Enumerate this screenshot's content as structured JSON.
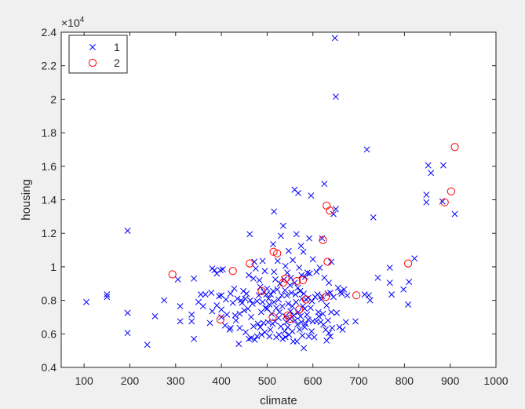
{
  "chart_data": {
    "type": "scatter",
    "title": "",
    "xlabel": "climate",
    "ylabel": "housing",
    "y_exponent_label": "×10",
    "y_exponent_power": "4",
    "xlim": [
      50,
      1000
    ],
    "ylim": [
      0.4,
      2.4
    ],
    "y_scale_factor": 10000,
    "grid": false,
    "legend_position": "top-left",
    "x_ticks": [
      {
        "value": 100,
        "label": "100"
      },
      {
        "value": 200,
        "label": "200"
      },
      {
        "value": 300,
        "label": "300"
      },
      {
        "value": 400,
        "label": "400"
      },
      {
        "value": 500,
        "label": "500"
      },
      {
        "value": 600,
        "label": "600"
      },
      {
        "value": 700,
        "label": "700"
      },
      {
        "value": 800,
        "label": "800"
      },
      {
        "value": 900,
        "label": "900"
      },
      {
        "value": 1000,
        "label": "1000"
      }
    ],
    "y_ticks": [
      {
        "value": 0.4,
        "label": "0.4"
      },
      {
        "value": 0.6,
        "label": "0.6"
      },
      {
        "value": 0.8,
        "label": "0.8"
      },
      {
        "value": 1.0,
        "label": "1"
      },
      {
        "value": 1.2,
        "label": "1.2"
      },
      {
        "value": 1.4,
        "label": "1.4"
      },
      {
        "value": 1.6,
        "label": "1.6"
      },
      {
        "value": 1.8,
        "label": "1.8"
      },
      {
        "value": 2.0,
        "label": "2"
      },
      {
        "value": 2.2,
        "label": "2.2"
      },
      {
        "value": 2.4,
        "label": "2.4"
      }
    ],
    "series": [
      {
        "name": "1",
        "marker": "x",
        "color": "#0000ff",
        "points": [
          [
            105,
            7900
          ],
          [
            150,
            8200
          ],
          [
            150,
            8350
          ],
          [
            195,
            12150
          ],
          [
            195,
            7250
          ],
          [
            195,
            6050
          ],
          [
            238,
            5350
          ],
          [
            255,
            7050
          ],
          [
            275,
            8000
          ],
          [
            305,
            9250
          ],
          [
            310,
            7650
          ],
          [
            310,
            6750
          ],
          [
            335,
            7150
          ],
          [
            335,
            6750
          ],
          [
            340,
            5700
          ],
          [
            340,
            9300
          ],
          [
            350,
            7900
          ],
          [
            355,
            8350
          ],
          [
            360,
            7650
          ],
          [
            365,
            8350
          ],
          [
            375,
            6650
          ],
          [
            378,
            8450
          ],
          [
            380,
            7350
          ],
          [
            380,
            9900
          ],
          [
            385,
            9800
          ],
          [
            390,
            7700
          ],
          [
            390,
            9600
          ],
          [
            395,
            8250
          ],
          [
            398,
            9800
          ],
          [
            400,
            8300
          ],
          [
            400,
            7450
          ],
          [
            400,
            7000
          ],
          [
            403,
            9850
          ],
          [
            408,
            6500
          ],
          [
            410,
            8050
          ],
          [
            412,
            7150
          ],
          [
            418,
            6250
          ],
          [
            420,
            8400
          ],
          [
            420,
            6350
          ],
          [
            425,
            7850
          ],
          [
            428,
            8700
          ],
          [
            430,
            7100
          ],
          [
            432,
            6800
          ],
          [
            435,
            8100
          ],
          [
            438,
            5400
          ],
          [
            440,
            7200
          ],
          [
            440,
            6350
          ],
          [
            443,
            8000
          ],
          [
            445,
            7850
          ],
          [
            448,
            8550
          ],
          [
            450,
            7400
          ],
          [
            452,
            8100
          ],
          [
            453,
            6100
          ],
          [
            455,
            8400
          ],
          [
            458,
            7500
          ],
          [
            460,
            5700
          ],
          [
            460,
            9500
          ],
          [
            462,
            11950
          ],
          [
            463,
            8000
          ],
          [
            465,
            7000
          ],
          [
            465,
            5750
          ],
          [
            468,
            7800
          ],
          [
            470,
            6450
          ],
          [
            470,
            9300
          ],
          [
            472,
            10300
          ],
          [
            473,
            5650
          ],
          [
            475,
            9900
          ],
          [
            478,
            5850
          ],
          [
            478,
            7950
          ],
          [
            480,
            6600
          ],
          [
            482,
            8300
          ],
          [
            483,
            9200
          ],
          [
            485,
            8800
          ],
          [
            485,
            6400
          ],
          [
            487,
            7300
          ],
          [
            488,
            5950
          ],
          [
            490,
            7900
          ],
          [
            490,
            10350
          ],
          [
            492,
            6650
          ],
          [
            493,
            8500
          ],
          [
            495,
            9750
          ],
          [
            495,
            6100
          ],
          [
            496,
            7550
          ],
          [
            498,
            8350
          ],
          [
            500,
            8700
          ],
          [
            500,
            7500
          ],
          [
            502,
            6700
          ],
          [
            503,
            8100
          ],
          [
            505,
            7750
          ],
          [
            505,
            5850
          ],
          [
            507,
            6250
          ],
          [
            508,
            8350
          ],
          [
            510,
            7200
          ],
          [
            512,
            6600
          ],
          [
            513,
            8550
          ],
          [
            513,
            11350
          ],
          [
            515,
            9700
          ],
          [
            515,
            13300
          ],
          [
            515,
            7900
          ],
          [
            517,
            6750
          ],
          [
            518,
            9250
          ],
          [
            520,
            5800
          ],
          [
            520,
            7550
          ],
          [
            522,
            8650
          ],
          [
            523,
            10350
          ],
          [
            525,
            6950
          ],
          [
            525,
            8050
          ],
          [
            526,
            5950
          ],
          [
            527,
            7300
          ],
          [
            528,
            9000
          ],
          [
            530,
            6450
          ],
          [
            530,
            11850
          ],
          [
            532,
            8300
          ],
          [
            533,
            7650
          ],
          [
            534,
            5700
          ],
          [
            535,
            12450
          ],
          [
            537,
            9250
          ],
          [
            538,
            6150
          ],
          [
            539,
            8600
          ],
          [
            540,
            5800
          ],
          [
            540,
            10050
          ],
          [
            540,
            7050
          ],
          [
            542,
            6700
          ],
          [
            543,
            8300
          ],
          [
            544,
            9650
          ],
          [
            545,
            6400
          ],
          [
            546,
            7800
          ],
          [
            547,
            10950
          ],
          [
            548,
            5950
          ],
          [
            550,
            8900
          ],
          [
            550,
            6900
          ],
          [
            551,
            7350
          ],
          [
            552,
            9350
          ],
          [
            553,
            8450
          ],
          [
            555,
            6150
          ],
          [
            555,
            7650
          ],
          [
            556,
            10400
          ],
          [
            557,
            5550
          ],
          [
            558,
            7100
          ],
          [
            560,
            9050
          ],
          [
            560,
            14600
          ],
          [
            561,
            6800
          ],
          [
            562,
            8350
          ],
          [
            563,
            7900
          ],
          [
            564,
            11950
          ],
          [
            565,
            5550
          ],
          [
            566,
            6550
          ],
          [
            567,
            8750
          ],
          [
            568,
            14400
          ],
          [
            568,
            7300
          ],
          [
            570,
            9950
          ],
          [
            571,
            6250
          ],
          [
            572,
            8550
          ],
          [
            573,
            7050
          ],
          [
            574,
            11250
          ],
          [
            575,
            6700
          ],
          [
            575,
            9500
          ],
          [
            576,
            8100
          ],
          [
            577,
            5900
          ],
          [
            578,
            7650
          ],
          [
            579,
            10900
          ],
          [
            580,
            5150
          ],
          [
            580,
            8400
          ],
          [
            582,
            6400
          ],
          [
            582,
            7500
          ],
          [
            583,
            9400
          ],
          [
            584,
            6600
          ],
          [
            585,
            8050
          ],
          [
            587,
            7150
          ],
          [
            588,
            9650
          ],
          [
            590,
            6850
          ],
          [
            590,
            8150
          ],
          [
            591,
            5850
          ],
          [
            592,
            11700
          ],
          [
            593,
            9600
          ],
          [
            595,
            7550
          ],
          [
            596,
            14250
          ],
          [
            597,
            6150
          ],
          [
            598,
            7950
          ],
          [
            600,
            6750
          ],
          [
            600,
            10450
          ],
          [
            603,
            5800
          ],
          [
            605,
            8200
          ],
          [
            608,
            9700
          ],
          [
            608,
            6750
          ],
          [
            610,
            8350
          ],
          [
            612,
            7300
          ],
          [
            613,
            7050
          ],
          [
            615,
            9950
          ],
          [
            617,
            6700
          ],
          [
            618,
            8050
          ],
          [
            620,
            8250
          ],
          [
            620,
            11700
          ],
          [
            622,
            7200
          ],
          [
            623,
            6550
          ],
          [
            625,
            9350
          ],
          [
            625,
            14950
          ],
          [
            628,
            6250
          ],
          [
            630,
            7700
          ],
          [
            630,
            5600
          ],
          [
            632,
            8400
          ],
          [
            633,
            6800
          ],
          [
            635,
            6050
          ],
          [
            635,
            9050
          ],
          [
            638,
            8450
          ],
          [
            638,
            5850
          ],
          [
            640,
            10300
          ],
          [
            640,
            7300
          ],
          [
            642,
            6350
          ],
          [
            645,
            13150
          ],
          [
            645,
            8200
          ],
          [
            648,
            23650
          ],
          [
            650,
            20150
          ],
          [
            650,
            13450
          ],
          [
            652,
            7250
          ],
          [
            655,
            8750
          ],
          [
            658,
            6400
          ],
          [
            660,
            8500
          ],
          [
            663,
            8400
          ],
          [
            665,
            6250
          ],
          [
            668,
            8650
          ],
          [
            672,
            6700
          ],
          [
            675,
            8300
          ],
          [
            693,
            6750
          ],
          [
            713,
            8350
          ],
          [
            718,
            17000
          ],
          [
            722,
            8300
          ],
          [
            725,
            8000
          ],
          [
            732,
            12950
          ],
          [
            742,
            9350
          ],
          [
            768,
            9050
          ],
          [
            768,
            9950
          ],
          [
            772,
            8350
          ],
          [
            798,
            8650
          ],
          [
            808,
            7750
          ],
          [
            810,
            9100
          ],
          [
            822,
            10500
          ],
          [
            848,
            14300
          ],
          [
            848,
            13850
          ],
          [
            852,
            16050
          ],
          [
            858,
            15600
          ],
          [
            883,
            13900
          ],
          [
            885,
            16050
          ],
          [
            910,
            13150
          ]
        ]
      },
      {
        "name": "2",
        "marker": "o",
        "color": "#ff0000",
        "points": [
          [
            293,
            9550
          ],
          [
            398,
            6850
          ],
          [
            425,
            9750
          ],
          [
            462,
            10200
          ],
          [
            488,
            8550
          ],
          [
            512,
            7000
          ],
          [
            514,
            10900
          ],
          [
            522,
            10800
          ],
          [
            535,
            9050
          ],
          [
            540,
            9300
          ],
          [
            545,
            7100
          ],
          [
            550,
            6900
          ],
          [
            565,
            9150
          ],
          [
            570,
            7450
          ],
          [
            578,
            9200
          ],
          [
            585,
            8050
          ],
          [
            622,
            11600
          ],
          [
            628,
            8200
          ],
          [
            630,
            13650
          ],
          [
            632,
            10300
          ],
          [
            637,
            13350
          ],
          [
            695,
            8300
          ],
          [
            808,
            10200
          ],
          [
            888,
            13850
          ],
          [
            902,
            14500
          ],
          [
            910,
            17150
          ]
        ]
      }
    ]
  }
}
